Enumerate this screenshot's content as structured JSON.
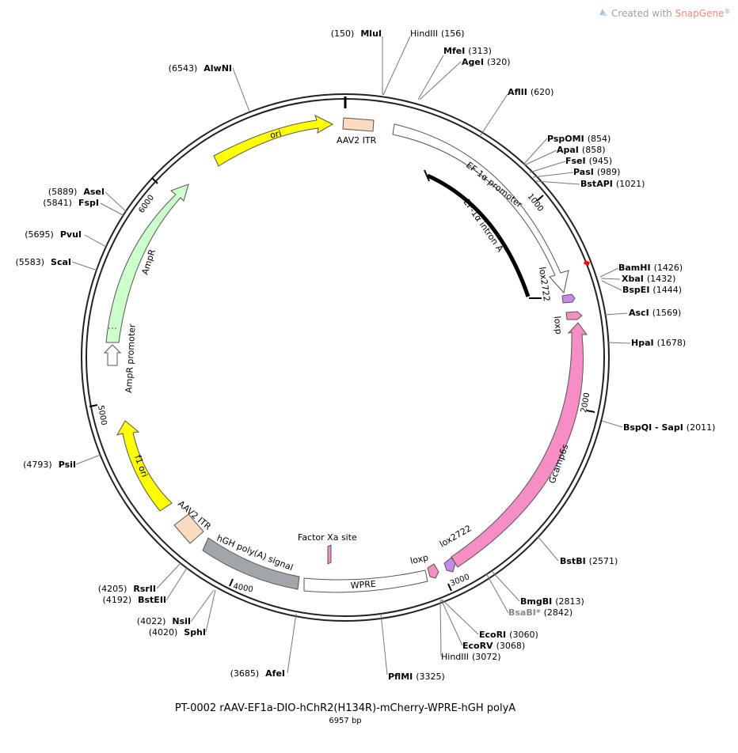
{
  "header": {
    "brand_prefix": "Created with ",
    "brand_name": "SnapGene",
    "brand_reg": "®"
  },
  "plasmid": {
    "name": "PT-0002 rAAV-EF1a-DIO-hChR2(H134R)-mCherry-WPRE-hGH polyA",
    "length_label": "6957 bp",
    "length": 6957
  },
  "colors": {
    "ori": "#ffff00",
    "itr": "#fcdcc0",
    "ampr": "#ccffcc",
    "gcamp": "#f58ec4",
    "polyA": "#a0a6ab",
    "lox2722": "#c38ae8",
    "loxp": "#f58ec4",
    "outline": "#555555",
    "highlight": "#ff0000"
  },
  "ticks": [
    {
      "bp": 1000,
      "label": "1000"
    },
    {
      "bp": 2000,
      "label": "2000"
    },
    {
      "bp": 3000,
      "label": "3000"
    },
    {
      "bp": 4000,
      "label": "4000"
    },
    {
      "bp": 5000,
      "label": "5000"
    },
    {
      "bp": 6000,
      "label": "6000"
    }
  ],
  "sites": [
    {
      "name": "MluI",
      "pos": "(150)",
      "side": "left"
    },
    {
      "name": "HindIII",
      "pos": "(156)",
      "side": "right",
      "style": "plain"
    },
    {
      "name": "MfeI",
      "pos": "(313)",
      "side": "right"
    },
    {
      "name": "AgeI",
      "pos": "(320)",
      "side": "right"
    },
    {
      "name": "AflII",
      "pos": "(620)",
      "side": "right"
    },
    {
      "name": "PspOMI",
      "pos": "(854)",
      "side": "right"
    },
    {
      "name": "ApaI",
      "pos": "(858)",
      "side": "right"
    },
    {
      "name": "FseI",
      "pos": "(945)",
      "side": "right"
    },
    {
      "name": "PasI",
      "pos": "(989)",
      "side": "right"
    },
    {
      "name": "BstAPI",
      "pos": "(1021)",
      "side": "right"
    },
    {
      "name": "BamHI",
      "pos": "(1426)",
      "side": "right"
    },
    {
      "name": "XbaI",
      "pos": "(1432)",
      "side": "right"
    },
    {
      "name": "BspEI",
      "pos": "(1444)",
      "side": "right"
    },
    {
      "name": "AscI",
      "pos": "(1569)",
      "side": "right"
    },
    {
      "name": "HpaI",
      "pos": "(1678)",
      "side": "right"
    },
    {
      "name": "BspQI - SapI",
      "pos": "(2011)",
      "side": "right"
    },
    {
      "name": "BstBI",
      "pos": "(2571)",
      "side": "right"
    },
    {
      "name": "BmgBI",
      "pos": "(2813)",
      "side": "right"
    },
    {
      "name": "BsaBI*",
      "pos": "(2842)",
      "side": "right",
      "style": "gray"
    },
    {
      "name": "EcoRI",
      "pos": "(3060)",
      "side": "right"
    },
    {
      "name": "EcoRV",
      "pos": "(3068)",
      "side": "right"
    },
    {
      "name": "HindIII",
      "pos": "(3072)",
      "side": "right",
      "style": "plain"
    },
    {
      "name": "PflMI",
      "pos": "(3325)",
      "side": "right"
    },
    {
      "name": "AfeI",
      "pos": "(3685)",
      "side": "left"
    },
    {
      "name": "NsiI",
      "pos": "(4022)",
      "side": "left"
    },
    {
      "name": "SphI",
      "pos": "(4020)",
      "side": "left"
    },
    {
      "name": "RsrII",
      "pos": "(4205)",
      "side": "left"
    },
    {
      "name": "BstEII",
      "pos": "(4192)",
      "side": "left"
    },
    {
      "name": "PsiI",
      "pos": "(4793)",
      "side": "left"
    },
    {
      "name": "ScaI",
      "pos": "(5583)",
      "side": "left"
    },
    {
      "name": "PvuI",
      "pos": "(5695)",
      "side": "left"
    },
    {
      "name": "AseI",
      "pos": "(5889)",
      "side": "left"
    },
    {
      "name": "FspI",
      "pos": "(5841)",
      "side": "left"
    },
    {
      "name": "AlwNI",
      "pos": "(6543)",
      "side": "left"
    }
  ],
  "features": [
    {
      "label": "ori",
      "start": 6020,
      "end": 6690,
      "type": "ori"
    },
    {
      "label": "AAV2 ITR",
      "start": 1,
      "end": 141,
      "type": "itr"
    },
    {
      "label": "EF-1α promoter",
      "start": 200,
      "end": 1381,
      "type": "promoter"
    },
    {
      "label": "EF-1α intron A",
      "start": 430,
      "end": 1370,
      "type": "intron"
    },
    {
      "label": "lox2722",
      "start": 1395,
      "end": 1430,
      "type": "lox2722"
    },
    {
      "label": "loxp",
      "start": 1470,
      "end": 1505,
      "type": "loxp"
    },
    {
      "label": "Gcamp6s",
      "start": 1520,
      "end": 2960,
      "type": "gcamp"
    },
    {
      "label": "lox2722",
      "start": 2970,
      "end": 3005,
      "type": "lox2722"
    },
    {
      "label": "loxp",
      "start": 3030,
      "end": 3065,
      "type": "loxp"
    },
    {
      "label": "WPRE",
      "start": 3110,
      "end": 3700,
      "type": "wpre"
    },
    {
      "label": "Factor Xa site",
      "start": 3390,
      "end": 3400,
      "type": "fxa"
    },
    {
      "label": "hGH poly(A) signal",
      "start": 3710,
      "end": 4190,
      "type": "polyA"
    },
    {
      "label": "AAV2 ITR",
      "start": 4240,
      "end": 4380,
      "type": "itr"
    },
    {
      "label": "f1 ori",
      "start": 4430,
      "end": 4890,
      "type": "ori"
    },
    {
      "label": "AmpR promoter",
      "start": 5020,
      "end": 5125,
      "type": "promoter"
    },
    {
      "label": "AmpR",
      "start": 5126,
      "end": 5986,
      "type": "ampr"
    }
  ]
}
